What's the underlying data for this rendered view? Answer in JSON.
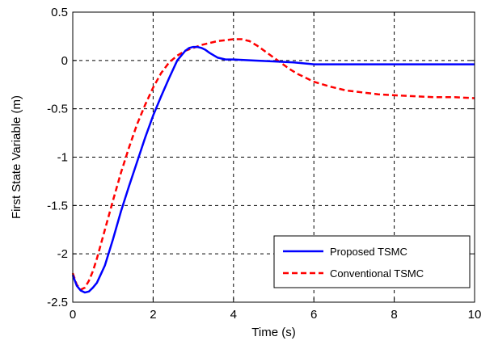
{
  "chart_data": {
    "type": "line",
    "title": "",
    "xlabel": "Time (s)",
    "ylabel": "First State Variable (m)",
    "xlim": [
      0,
      10
    ],
    "ylim": [
      -2.5,
      0.5
    ],
    "x_ticks": [
      0,
      2,
      4,
      6,
      8,
      10
    ],
    "x_tick_labels": [
      "0",
      "2",
      "4",
      "6",
      "8",
      "10"
    ],
    "y_ticks": [
      0.5,
      0,
      -0.5,
      -1,
      -1.5,
      -2,
      -2.5
    ],
    "y_tick_labels": [
      "0.5",
      "0",
      "-0.5",
      "-1",
      "-1.5",
      "-2",
      "-2.5"
    ],
    "grid": true,
    "legend_position": "bottom-right",
    "series": [
      {
        "name": "Proposed TSMC",
        "color": "#0000FF",
        "style": "solid",
        "x": [
          0,
          0.1,
          0.2,
          0.3,
          0.4,
          0.5,
          0.6,
          0.8,
          1.0,
          1.2,
          1.4,
          1.6,
          1.8,
          2.0,
          2.2,
          2.4,
          2.6,
          2.8,
          2.9,
          3.0,
          3.1,
          3.2,
          3.3,
          3.4,
          3.6,
          3.8,
          4.0,
          4.5,
          5.0,
          5.5,
          6.0,
          7.0,
          8.0,
          9.0,
          10.0
        ],
        "y": [
          -2.22,
          -2.33,
          -2.38,
          -2.4,
          -2.39,
          -2.35,
          -2.3,
          -2.12,
          -1.85,
          -1.56,
          -1.3,
          -1.05,
          -0.8,
          -0.57,
          -0.37,
          -0.18,
          0.0,
          0.1,
          0.13,
          0.14,
          0.14,
          0.13,
          0.11,
          0.08,
          0.03,
          0.01,
          0.01,
          0.0,
          -0.01,
          -0.02,
          -0.04,
          -0.04,
          -0.04,
          -0.04,
          -0.04
        ]
      },
      {
        "name": "Conventional TSMC",
        "color": "#FF0000",
        "style": "dashed",
        "x": [
          0,
          0.1,
          0.2,
          0.3,
          0.4,
          0.5,
          0.6,
          0.8,
          1.0,
          1.2,
          1.4,
          1.6,
          1.8,
          2.0,
          2.2,
          2.4,
          2.6,
          2.8,
          3.0,
          3.2,
          3.4,
          3.6,
          3.8,
          4.0,
          4.2,
          4.4,
          4.6,
          4.8,
          5.0,
          5.2,
          5.4,
          5.6,
          5.8,
          6.0,
          6.4,
          6.8,
          7.2,
          7.6,
          8.0,
          8.5,
          9.0,
          9.5,
          10.0
        ],
        "y": [
          -2.2,
          -2.32,
          -2.37,
          -2.35,
          -2.28,
          -2.18,
          -2.05,
          -1.75,
          -1.45,
          -1.16,
          -0.9,
          -0.66,
          -0.46,
          -0.28,
          -0.13,
          -0.02,
          0.05,
          0.1,
          0.13,
          0.16,
          0.18,
          0.2,
          0.21,
          0.22,
          0.22,
          0.2,
          0.15,
          0.09,
          0.03,
          -0.03,
          -0.09,
          -0.14,
          -0.18,
          -0.22,
          -0.27,
          -0.31,
          -0.33,
          -0.35,
          -0.36,
          -0.37,
          -0.38,
          -0.38,
          -0.39
        ]
      }
    ]
  }
}
